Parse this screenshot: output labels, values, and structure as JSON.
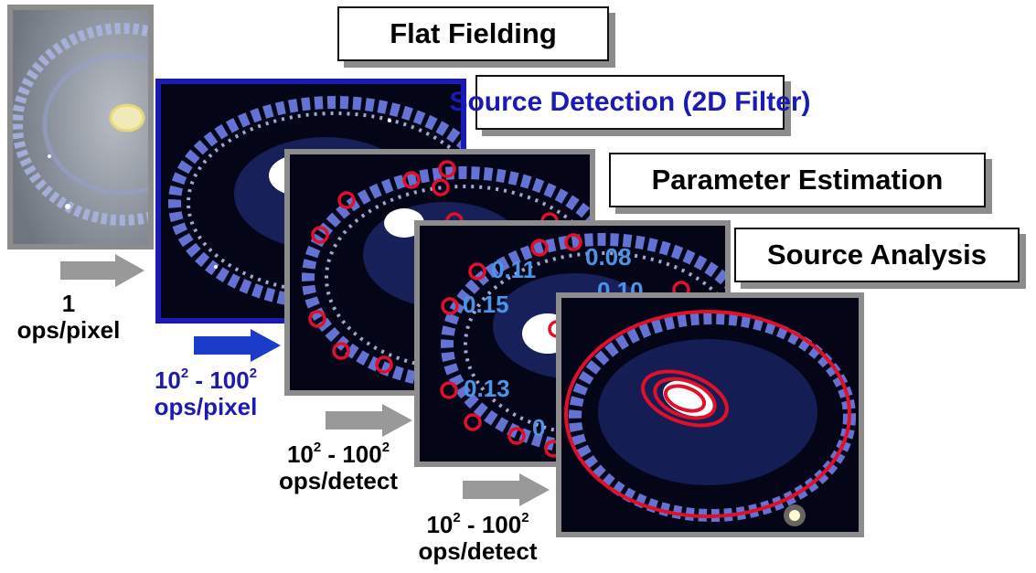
{
  "stages": [
    {
      "label": "Flat Fielding",
      "color": "#000000"
    },
    {
      "label": "Source Detection (2D Filter)",
      "color": "#1a1ab4"
    },
    {
      "label": "Parameter Estimation",
      "color": "#000000"
    },
    {
      "label": "Source Analysis",
      "color": "#000000"
    }
  ],
  "costs": [
    {
      "line1": "1",
      "line2": "ops/pixel",
      "color": "#000000"
    },
    {
      "base1": "10",
      "exp1": "2",
      "sep": " - ",
      "base2": "100",
      "exp2": "2",
      "line2": "ops/pixel",
      "color": "#1a1ab4"
    },
    {
      "base1": "10",
      "exp1": "2",
      "sep": " - ",
      "base2": "100",
      "exp2": "2",
      "line2": "ops/detect",
      "color": "#000000"
    },
    {
      "base1": "10",
      "exp1": "2",
      "sep": " - ",
      "base2": "100",
      "exp2": "2",
      "line2": "ops/detect",
      "color": "#000000"
    }
  ],
  "arrows": [
    {
      "color": "#999999"
    },
    {
      "color": "#1a3cc8"
    },
    {
      "color": "#999999"
    },
    {
      "color": "#999999"
    }
  ],
  "detection_values": [
    "0.11",
    "0.08",
    "0.15",
    "0.10",
    "0.13",
    "0"
  ],
  "colors": {
    "detection_circle": "#e0102a",
    "value_text": "#4c95e6",
    "frame_gray": "#8c8c8c",
    "frame_blue": "#1a1ab4"
  }
}
